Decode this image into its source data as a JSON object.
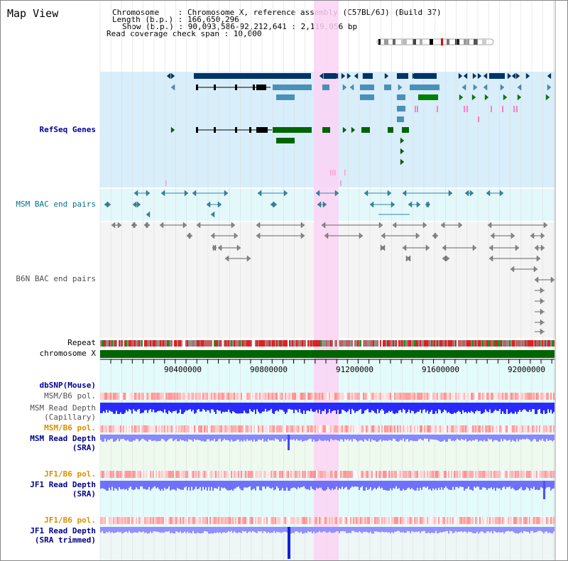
{
  "title": "Map View",
  "header": {
    "line1": "Chromosome    : Chromosome X, reference assembly (C57BL/6J) (Build 37)",
    "line2": "Length (b.p.) : 166,650,296",
    "line3": "Show (b.p.) : 90,093,586-92,212,641 : 2,119,056 bp",
    "line4": "Read coverage check span : 10,000"
  },
  "tracks": {
    "refseq": "RefSeq Genes",
    "msm_bac": "MSM BAC end pairs",
    "b6n_bac": "B6N BAC end pairs",
    "repeat": "Repeat",
    "chrom": "chromosome X",
    "dbsnp": "dbSNP(Mouse)",
    "msm_pol1": "MSM/B6 pol.",
    "msm_cap_1": "MSM Read Depth",
    "msm_cap_2": "(Capillary)",
    "msm_pol2": "MSM/B6 pol.",
    "msm_sra_1": "MSM Read Depth",
    "msm_sra_2": "(SRA)",
    "jf1_pol1": "JF1/B6 pol.",
    "jf1_sra_1": "JF1 Read Depth",
    "jf1_sra_2": "(SRA)",
    "jf1_pol2": "JF1/B6 pol.",
    "jf1_trim_1": "JF1 Read Depth",
    "jf1_trim_2": "(SRA trimmed)"
  },
  "axis_ticks": [
    "90400000",
    "90800000",
    "91200000",
    "91600000",
    "92000000"
  ],
  "colors": {
    "highlight": "#fbd3f5",
    "refseq_bg": "#d8eefa",
    "bac_bg": "#e3f8fb",
    "chrom_bar": "#006400",
    "gene_dark": "#003366",
    "gene_mid": "#4a90b8",
    "gene_green": "#006400",
    "depth_blue": "#2020ff",
    "depth_light": "#7070ff",
    "pol_red": "#f04040"
  }
}
